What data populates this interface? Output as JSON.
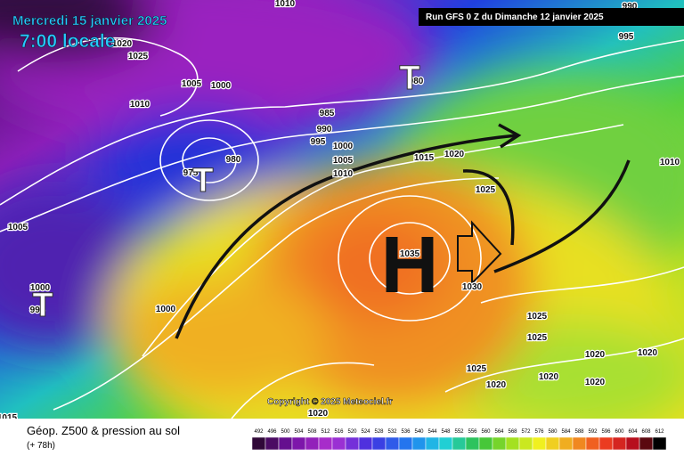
{
  "header": {
    "date": "Mercredi 15 janvier 2025",
    "time": "7:00 locale",
    "run": "Run GFS 0 Z du Dimanche 12 janvier 2025"
  },
  "copyright": "Copyright © 2025 Meteociel.fr",
  "footer": {
    "title": "Géop. Z500 & pression au sol",
    "subtitle": "(+ 78h)"
  },
  "scale": [
    492,
    496,
    500,
    504,
    508,
    512,
    516,
    520,
    524,
    528,
    532,
    536,
    540,
    544,
    548,
    552,
    556,
    560,
    564,
    568,
    572,
    576,
    580,
    584,
    588,
    592,
    596,
    600,
    604,
    608,
    612
  ],
  "markers": [
    "T",
    "T",
    "T",
    "H"
  ],
  "isobars": [
    "1020",
    "1025",
    "1005",
    "1000",
    "1010",
    "980",
    "985",
    "990",
    "995",
    "1000",
    "1005",
    "1010",
    "1015",
    "1020",
    "1025",
    "1035",
    "1030",
    "1025",
    "1025",
    "1020",
    "1020",
    "1020",
    "1020",
    "1020",
    "1020",
    "1025",
    "1010",
    "990",
    "995",
    "1005",
    "1000",
    "995",
    "1000",
    "980",
    "975",
    "1015",
    "1010"
  ]
}
